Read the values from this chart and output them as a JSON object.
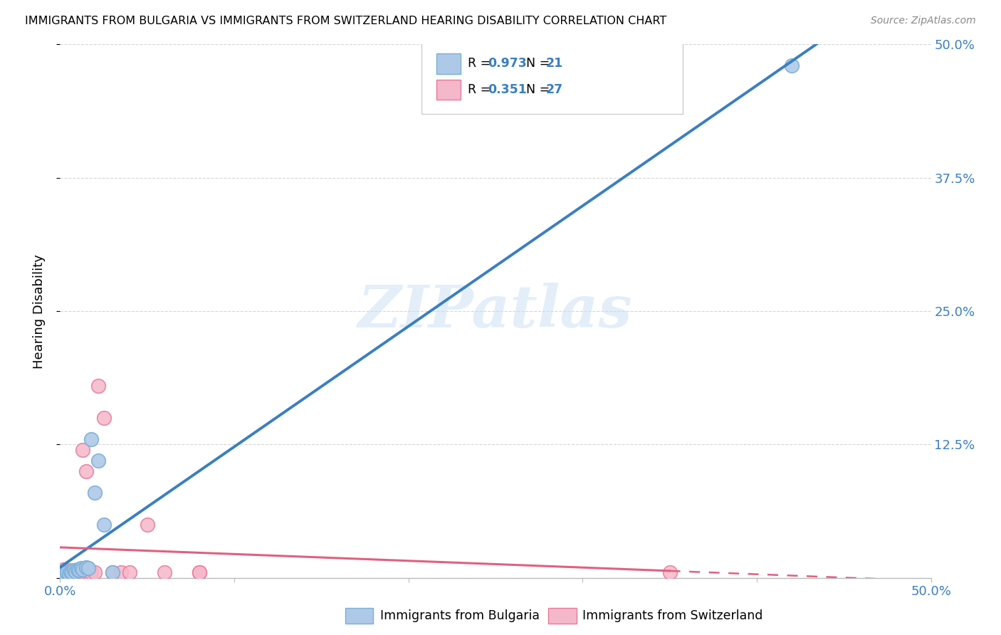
{
  "title": "IMMIGRANTS FROM BULGARIA VS IMMIGRANTS FROM SWITZERLAND HEARING DISABILITY CORRELATION CHART",
  "source": "Source: ZipAtlas.com",
  "ylabel": "Hearing Disability",
  "xlim": [
    0.0,
    0.5
  ],
  "ylim": [
    0.0,
    0.5
  ],
  "xticks": [
    0.0,
    0.1,
    0.2,
    0.3,
    0.4,
    0.5
  ],
  "yticks": [
    0.0,
    0.125,
    0.25,
    0.375,
    0.5
  ],
  "ytick_labels": [
    "",
    "12.5%",
    "25.0%",
    "37.5%",
    "50.0%"
  ],
  "xtick_labels_left": "0.0%",
  "xtick_labels_right": "50.0%",
  "bulgaria_color": "#aec9e8",
  "switzerland_color": "#f5b8ca",
  "bulgaria_edge": "#7aafd6",
  "switzerland_edge": "#e87a99",
  "bulgaria_R": 0.973,
  "bulgaria_N": 21,
  "switzerland_R": 0.351,
  "switzerland_N": 27,
  "bulgaria_line_color": "#3a7fc1",
  "switzerland_line_color": "#e06080",
  "tick_color": "#3a7fc1",
  "watermark_text": "ZIPatlas",
  "legend_label_bulgaria": "Immigrants from Bulgaria",
  "legend_label_switzerland": "Immigrants from Switzerland",
  "bulgaria_points_x": [
    0.001,
    0.002,
    0.003,
    0.004,
    0.005,
    0.006,
    0.007,
    0.008,
    0.009,
    0.01,
    0.011,
    0.012,
    0.013,
    0.015,
    0.016,
    0.018,
    0.02,
    0.022,
    0.025,
    0.03,
    0.42
  ],
  "bulgaria_points_y": [
    0.005,
    0.004,
    0.003,
    0.005,
    0.004,
    0.006,
    0.005,
    0.007,
    0.006,
    0.008,
    0.007,
    0.009,
    0.008,
    0.01,
    0.009,
    0.13,
    0.08,
    0.11,
    0.05,
    0.005,
    0.48
  ],
  "switzerland_points_x": [
    0.001,
    0.002,
    0.003,
    0.004,
    0.005,
    0.006,
    0.007,
    0.008,
    0.009,
    0.01,
    0.011,
    0.012,
    0.013,
    0.015,
    0.016,
    0.018,
    0.02,
    0.022,
    0.025,
    0.03,
    0.035,
    0.04,
    0.05,
    0.06,
    0.08,
    0.35,
    0.08
  ],
  "switzerland_points_y": [
    0.005,
    0.008,
    0.006,
    0.004,
    0.007,
    0.005,
    0.006,
    0.004,
    0.003,
    0.005,
    0.004,
    0.006,
    0.12,
    0.1,
    0.005,
    0.005,
    0.005,
    0.18,
    0.15,
    0.005,
    0.005,
    0.005,
    0.05,
    0.005,
    0.005,
    0.005,
    0.005
  ]
}
